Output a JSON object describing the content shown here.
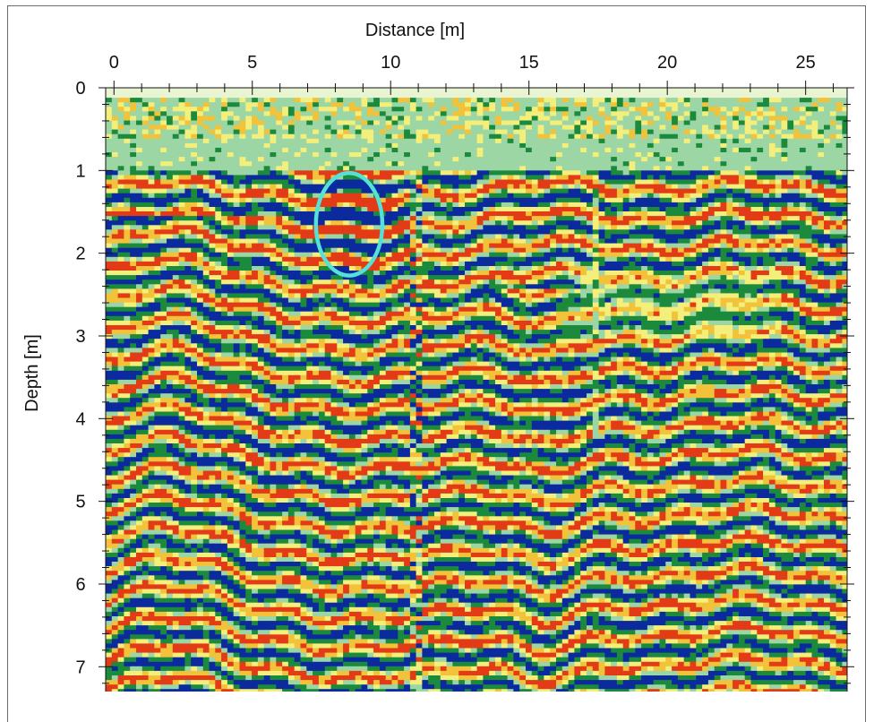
{
  "chart_data": {
    "type": "heatmap",
    "title": "",
    "xlabel": "Distance [m]",
    "ylabel": "Depth [m]",
    "x_axis_position": "top",
    "xlim": [
      -0.3,
      26.5
    ],
    "ylim": [
      0,
      7.3
    ],
    "x_ticks": [
      0,
      5,
      10,
      15,
      20,
      25
    ],
    "y_ticks": [
      0,
      1,
      2,
      3,
      4,
      5,
      6,
      7
    ],
    "x_tick_labels": [
      "0",
      "5",
      "10",
      "15",
      "20",
      "25"
    ],
    "y_tick_labels": [
      "0",
      "1",
      "2",
      "3",
      "4",
      "5",
      "6",
      "7"
    ],
    "colormap": [
      "#0a2a9e",
      "#1c8a3c",
      "#9cd6a4",
      "#f3ef7a",
      "#f2c23a",
      "#e23b16"
    ],
    "annotations": [
      {
        "type": "circle",
        "center": [
          8.5,
          1.65
        ],
        "radius_x": 1.8,
        "radius_y": 0.62,
        "color": "#55e0d8"
      }
    ],
    "grid": false,
    "legend": "none"
  }
}
